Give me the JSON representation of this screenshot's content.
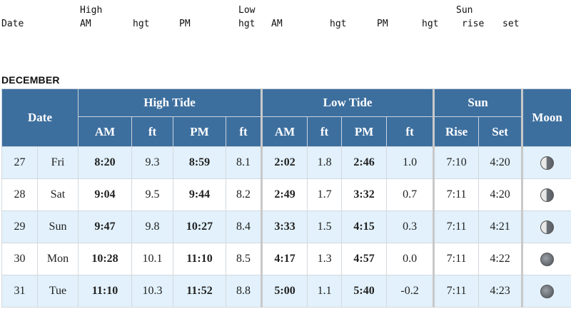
{
  "text_header": {
    "row1": {
      "high": "High",
      "low": "Low",
      "sun": "Sun"
    },
    "row2": {
      "date": "Date",
      "am": "AM",
      "hgt1": "hgt",
      "pm": "PM",
      "hgt2": "hgt",
      "am2": "AM",
      "hgt3": "hgt",
      "pm2": "PM",
      "hgt4": "hgt",
      "rise": "rise",
      "set": "set"
    }
  },
  "month": "DECEMBER",
  "table": {
    "date_header": "Date",
    "high_header": "High Tide",
    "low_header": "Low Tide",
    "sun_header": "Sun",
    "moon_header": "Moon",
    "sub": {
      "am": "AM",
      "ft": "ft",
      "pm": "PM",
      "rise": "Rise",
      "set": "Set"
    },
    "rows": [
      {
        "day": "27",
        "dow": "Fri",
        "h_am": "8:20",
        "h_am_ft": "9.3",
        "h_pm": "8:59",
        "h_pm_ft": "8.1",
        "l_am": "2:02",
        "l_am_ft": "1.8",
        "l_pm": "2:46",
        "l_pm_ft": "1.0",
        "rise": "7:10",
        "set": "4:20",
        "moon": "waning-gibbous-icon"
      },
      {
        "day": "28",
        "dow": "Sat",
        "h_am": "9:04",
        "h_am_ft": "9.5",
        "h_pm": "9:44",
        "h_pm_ft": "8.2",
        "l_am": "2:49",
        "l_am_ft": "1.7",
        "l_pm": "3:32",
        "l_pm_ft": "0.7",
        "rise": "7:11",
        "set": "4:20",
        "moon": "waning-gibbous-icon"
      },
      {
        "day": "29",
        "dow": "Sun",
        "h_am": "9:47",
        "h_am_ft": "9.8",
        "h_pm": "10:27",
        "h_pm_ft": "8.4",
        "l_am": "3:33",
        "l_am_ft": "1.5",
        "l_pm": "4:15",
        "l_pm_ft": "0.3",
        "rise": "7:11",
        "set": "4:21",
        "moon": "waning-gibbous-icon"
      },
      {
        "day": "30",
        "dow": "Mon",
        "h_am": "10:28",
        "h_am_ft": "10.1",
        "h_pm": "11:10",
        "h_pm_ft": "8.5",
        "l_am": "4:17",
        "l_am_ft": "1.3",
        "l_pm": "4:57",
        "l_pm_ft": "0.0",
        "rise": "7:11",
        "set": "4:22",
        "moon": "full-moon-icon"
      },
      {
        "day": "31",
        "dow": "Tue",
        "h_am": "11:10",
        "h_am_ft": "10.3",
        "h_pm": "11:52",
        "h_pm_ft": "8.8",
        "l_am": "5:00",
        "l_am_ft": "1.1",
        "l_pm": "5:40",
        "l_pm_ft": "-0.2",
        "rise": "7:11",
        "set": "4:23",
        "moon": "full-moon-icon"
      }
    ]
  }
}
